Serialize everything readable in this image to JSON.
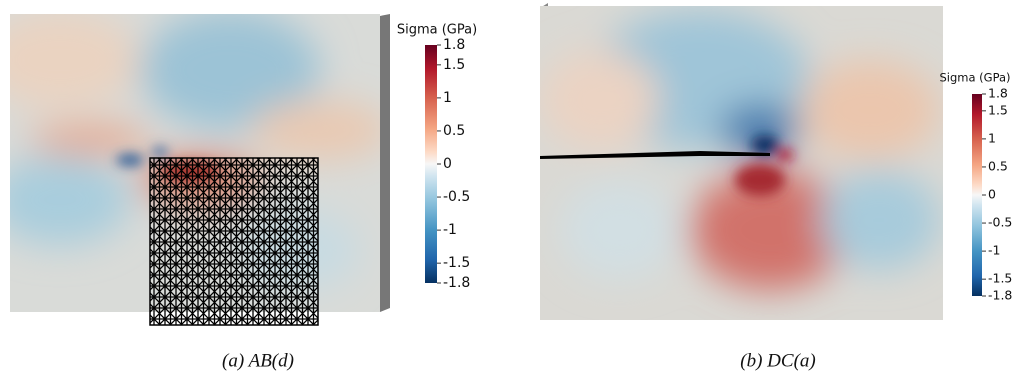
{
  "panels": [
    {
      "colorbar": {
        "title": "Sigma (GPa)",
        "lim": [
          -1.8,
          1.8
        ],
        "ticks": [
          1.8,
          1.5,
          1,
          0.5,
          0,
          -0.5,
          -1,
          -1.5,
          -1.8
        ]
      },
      "caption": "(a) AB(d)"
    },
    {
      "colorbar": {
        "title": "Sigma (GPa)",
        "lim": [
          -1.8,
          1.8
        ],
        "ticks": [
          1.8,
          1.5,
          1,
          0.5,
          0,
          -0.5,
          -1,
          -1.5,
          -1.8
        ]
      },
      "caption": "(b) DC(a)"
    }
  ]
}
